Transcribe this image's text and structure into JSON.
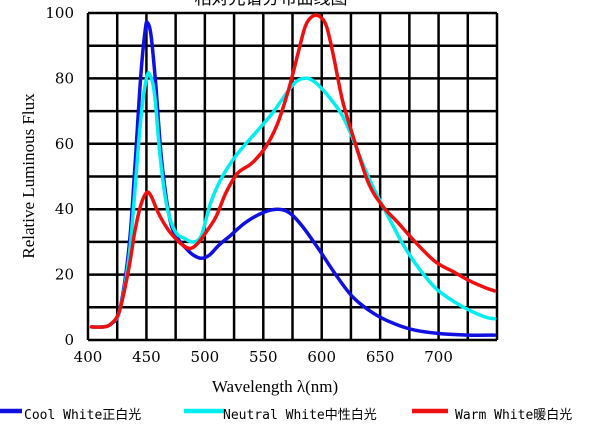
{
  "chart_data": {
    "type": "line",
    "title": "相对光谱分布曲线图",
    "xlabel": "Wavelength λ(nm)",
    "ylabel": "Relative Luminous Flux",
    "xlim": [
      400,
      750
    ],
    "ylim": [
      0,
      100
    ],
    "x_ticks": [
      400,
      450,
      500,
      550,
      600,
      650,
      700
    ],
    "y_ticks": [
      0,
      20,
      40,
      60,
      80,
      100
    ],
    "grid": true,
    "legend_position": "bottom",
    "series": [
      {
        "name": "Cool White正白光",
        "color": "#1010e0",
        "points": [
          [
            403,
            4
          ],
          [
            413,
            4
          ],
          [
            420,
            5
          ],
          [
            427,
            9
          ],
          [
            435,
            28
          ],
          [
            440,
            52
          ],
          [
            445,
            80
          ],
          [
            449,
            95
          ],
          [
            451,
            97
          ],
          [
            454,
            93
          ],
          [
            458,
            78
          ],
          [
            463,
            55
          ],
          [
            470,
            37
          ],
          [
            477,
            31
          ],
          [
            484,
            28
          ],
          [
            490,
            26
          ],
          [
            497,
            25
          ],
          [
            504,
            26
          ],
          [
            512,
            29
          ],
          [
            522,
            32
          ],
          [
            535,
            36
          ],
          [
            550,
            39
          ],
          [
            562,
            40
          ],
          [
            572,
            39
          ],
          [
            583,
            35
          ],
          [
            597,
            28
          ],
          [
            612,
            20
          ],
          [
            627,
            13
          ],
          [
            645,
            8
          ],
          [
            662,
            5
          ],
          [
            680,
            3
          ],
          [
            700,
            2
          ],
          [
            725,
            1.5
          ],
          [
            748,
            1.5
          ]
        ]
      },
      {
        "name": "Neutral White中性白光",
        "color": "#00eeee",
        "points": [
          [
            403,
            4
          ],
          [
            413,
            4
          ],
          [
            420,
            5
          ],
          [
            427,
            9
          ],
          [
            435,
            25
          ],
          [
            440,
            45
          ],
          [
            445,
            67
          ],
          [
            450,
            80
          ],
          [
            453,
            81
          ],
          [
            457,
            75
          ],
          [
            462,
            55
          ],
          [
            468,
            40
          ],
          [
            475,
            33
          ],
          [
            483,
            31
          ],
          [
            490,
            30
          ],
          [
            497,
            32
          ],
          [
            505,
            42
          ],
          [
            515,
            50
          ],
          [
            528,
            57
          ],
          [
            545,
            64
          ],
          [
            557,
            69
          ],
          [
            567,
            74
          ],
          [
            578,
            79
          ],
          [
            588,
            80
          ],
          [
            597,
            78
          ],
          [
            607,
            74
          ],
          [
            617,
            69
          ],
          [
            625,
            63
          ],
          [
            635,
            54
          ],
          [
            645,
            46
          ],
          [
            658,
            37
          ],
          [
            670,
            29
          ],
          [
            683,
            22
          ],
          [
            697,
            16
          ],
          [
            712,
            12
          ],
          [
            727,
            9
          ],
          [
            740,
            7
          ],
          [
            748,
            6.5
          ]
        ]
      },
      {
        "name": "Warm White暖白光",
        "color": "#ee1010",
        "points": [
          [
            403,
            4
          ],
          [
            413,
            4
          ],
          [
            420,
            5
          ],
          [
            427,
            9
          ],
          [
            435,
            22
          ],
          [
            440,
            33
          ],
          [
            445,
            41
          ],
          [
            450,
            45
          ],
          [
            454,
            44
          ],
          [
            460,
            39
          ],
          [
            468,
            34
          ],
          [
            475,
            31
          ],
          [
            481,
            29
          ],
          [
            488,
            28
          ],
          [
            495,
            30
          ],
          [
            503,
            34
          ],
          [
            510,
            38
          ],
          [
            518,
            45
          ],
          [
            528,
            51
          ],
          [
            540,
            54
          ],
          [
            552,
            59
          ],
          [
            562,
            66
          ],
          [
            572,
            77
          ],
          [
            580,
            88
          ],
          [
            586,
            96
          ],
          [
            592,
            99
          ],
          [
            598,
            99
          ],
          [
            604,
            96
          ],
          [
            610,
            87
          ],
          [
            618,
            73
          ],
          [
            628,
            61
          ],
          [
            640,
            48
          ],
          [
            652,
            41
          ],
          [
            665,
            36
          ],
          [
            680,
            30
          ],
          [
            697,
            24
          ],
          [
            712,
            21
          ],
          [
            727,
            18
          ],
          [
            740,
            16
          ],
          [
            748,
            15
          ]
        ]
      }
    ]
  }
}
